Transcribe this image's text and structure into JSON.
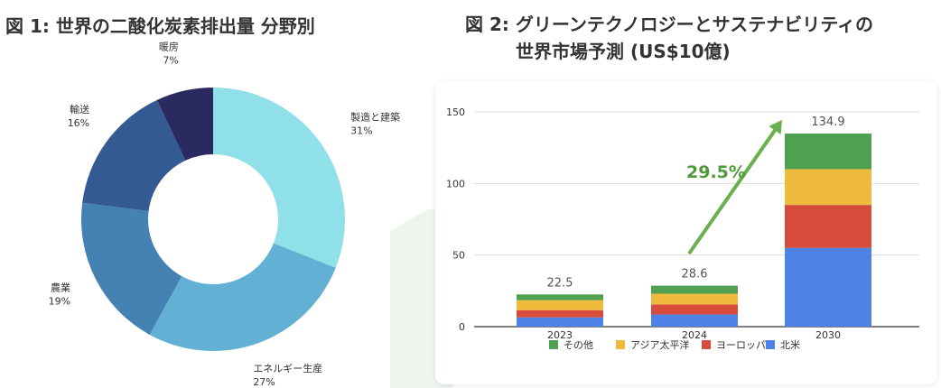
{
  "fig1": {
    "title": "図 1: 世界の二酸化炭素排出量 分野別"
  },
  "fig2": {
    "title_line1": "図 2: グリーンテクノロジーとサステナビリティの",
    "title_line2": "世界市場予測 (US$10億)"
  },
  "chart_data": [
    {
      "type": "pie",
      "donut": true,
      "title": "図 1: 世界の二酸化炭素排出量 分野別",
      "labels": [
        "製造と建築",
        "エネルギー生産",
        "農業",
        "輸送",
        "暖房"
      ],
      "values": [
        31,
        27,
        19,
        16,
        7
      ],
      "value_labels": [
        "31%",
        "27%",
        "19%",
        "16%",
        "7%"
      ],
      "colors": [
        "#8fe0e8",
        "#62b1d4",
        "#4482b3",
        "#335a93",
        "#2a2960"
      ]
    },
    {
      "type": "bar",
      "stacked": true,
      "title": "図 2: グリーンテクノロジーとサステナビリティの 世界市場予測 (US$10億)",
      "categories": [
        "2023",
        "2024",
        "2030"
      ],
      "ylim": [
        0,
        150
      ],
      "yticks": [
        "0",
        "50",
        "100",
        "150"
      ],
      "grid": true,
      "legend_position": "bottom",
      "series": [
        {
          "name": "北米",
          "color": "#4f82e6",
          "values": [
            6.5,
            8.5,
            55
          ]
        },
        {
          "name": "ヨーロッパ",
          "color": "#d64b3a",
          "values": [
            5,
            7,
            30
          ]
        },
        {
          "name": "アジア太平洋",
          "color": "#efbb3c",
          "values": [
            7,
            7.5,
            25
          ]
        },
        {
          "name": "その他",
          "color": "#50a052",
          "values": [
            4,
            5.6,
            24.9
          ]
        }
      ],
      "legend_order": [
        "その他",
        "アジア太平洋",
        "ヨーロッパ",
        "北米"
      ],
      "totals": [
        "22.5",
        "28.6",
        "134.9"
      ],
      "annotation": "29.5%",
      "annotation_color": "#6ab04c"
    }
  ]
}
